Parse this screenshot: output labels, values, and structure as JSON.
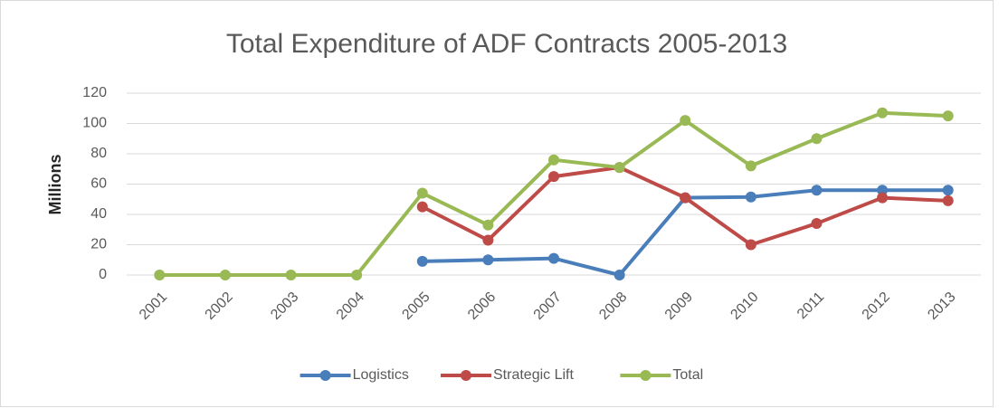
{
  "chart_data": {
    "type": "line",
    "title": "Total Expenditure of ADF Contracts 2005-2013",
    "y_label": "Millions",
    "categories": [
      "2001",
      "2002",
      "2003",
      "2004",
      "2005",
      "2006",
      "2007",
      "2008",
      "2009",
      "2010",
      "2011",
      "2012",
      "2013"
    ],
    "series": [
      {
        "name": "Logistics",
        "color": "#4a7ebb",
        "values": [
          null,
          null,
          null,
          null,
          9,
          10,
          11,
          0,
          51,
          51.5,
          56,
          56,
          56
        ]
      },
      {
        "name": "Strategic Lift",
        "color": "#be4b48",
        "values": [
          null,
          null,
          null,
          null,
          45,
          23,
          65,
          71,
          51,
          20,
          34,
          51,
          49
        ]
      },
      {
        "name": "Total",
        "color": "#98b954",
        "values": [
          0,
          0,
          0,
          0,
          54,
          33,
          76,
          71,
          102,
          72,
          90,
          107,
          105
        ]
      }
    ],
    "ylim": [
      0,
      120
    ],
    "yticks": [
      0,
      20,
      40,
      60,
      80,
      100,
      120
    ],
    "grid": true,
    "legend": "bottom"
  }
}
